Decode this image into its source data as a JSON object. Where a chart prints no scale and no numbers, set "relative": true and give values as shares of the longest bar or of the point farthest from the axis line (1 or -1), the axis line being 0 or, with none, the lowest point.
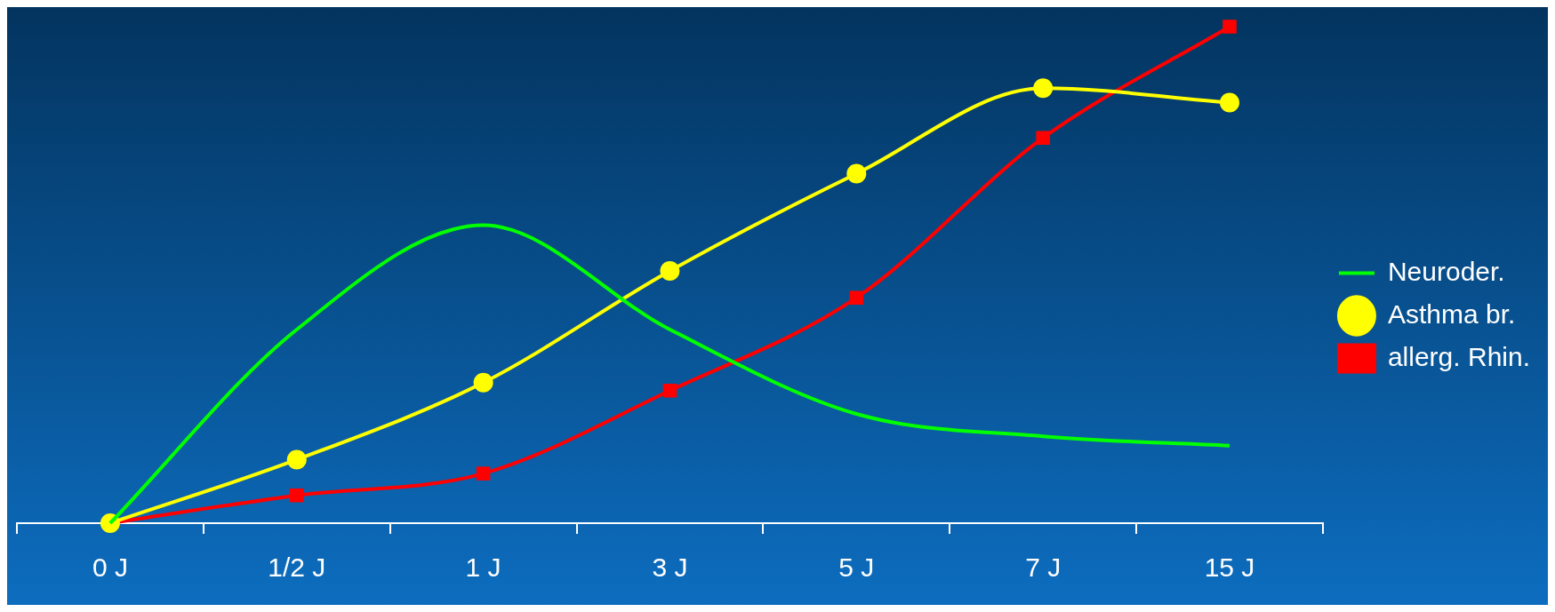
{
  "chart_data": {
    "type": "line",
    "relative": true,
    "categories": [
      "0 J",
      "1/2 J",
      "1 J",
      "3 J",
      "5 J",
      "7 J",
      "15 J"
    ],
    "legend": "right",
    "grid": false,
    "series": [
      {
        "name": "Neuroder.",
        "color": "#00ff00",
        "marker": "none",
        "values": [
          0,
          0.39,
          0.6,
          0.39,
          0.22,
          0.175,
          0.156
        ]
      },
      {
        "name": "Asthma br.",
        "color": "#ffff00",
        "marker": "circle",
        "values": [
          0,
          0.128,
          0.283,
          0.508,
          0.704,
          0.876,
          0.847
        ]
      },
      {
        "name": "allerg. Rhin.",
        "color": "#ff0000",
        "marker": "square",
        "values": [
          0,
          0.056,
          0.1,
          0.267,
          0.454,
          0.776,
          1
        ]
      }
    ]
  }
}
